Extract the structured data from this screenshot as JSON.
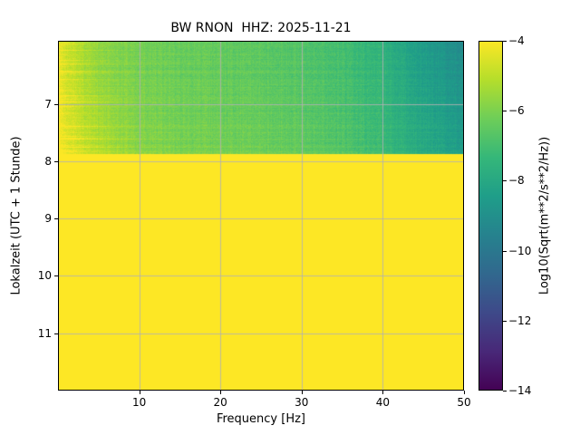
{
  "chart_data": {
    "type": "heatmap",
    "title": "BW RNON  HHZ: 2025-11-21",
    "xlabel": "Frequency [Hz]",
    "ylabel": "Lokalzeit (UTC + 1 Stunde)",
    "colorbar_label": "Log10(Sqrt(m**2/s**2/Hz))",
    "x_range": [
      0,
      50
    ],
    "y_range": [
      5.9,
      12.0
    ],
    "x_ticks": [
      10,
      20,
      30,
      40,
      50
    ],
    "y_ticks": [
      7,
      8,
      9,
      10,
      11
    ],
    "colorbar_range": [
      -14,
      -4
    ],
    "colorbar_ticks": [
      -4,
      -6,
      -8,
      -10,
      -12,
      -14
    ],
    "colormap": "viridis",
    "colormap_stops": [
      [
        0.0,
        "#440154"
      ],
      [
        0.111,
        "#482878"
      ],
      [
        0.222,
        "#3e4989"
      ],
      [
        0.333,
        "#31688e"
      ],
      [
        0.444,
        "#26828e"
      ],
      [
        0.556,
        "#1f9e89"
      ],
      [
        0.667,
        "#35b779"
      ],
      [
        0.778,
        "#6ece58"
      ],
      [
        0.889,
        "#b5de2b"
      ],
      [
        1.0,
        "#fde725"
      ]
    ],
    "grid": true,
    "grid_color": "#b2b2b2",
    "clip_time": 7.87,
    "clip_value": -4,
    "value_grid": {
      "times": [
        5.9,
        6.4,
        6.9,
        7.4,
        7.87
      ],
      "freqs": [
        0,
        5,
        10,
        15,
        20,
        25,
        30,
        35,
        40,
        45,
        50
      ],
      "values": [
        [
          -4.8,
          -5.8,
          -6.2,
          -6.4,
          -6.5,
          -6.6,
          -6.8,
          -7.1,
          -7.7,
          -8.6,
          -9.3
        ],
        [
          -4.7,
          -5.7,
          -6.1,
          -6.3,
          -6.4,
          -6.5,
          -6.7,
          -7.0,
          -7.5,
          -8.4,
          -9.0
        ],
        [
          -4.6,
          -5.5,
          -6.0,
          -6.2,
          -6.3,
          -6.4,
          -6.6,
          -6.9,
          -7.4,
          -8.2,
          -8.8
        ],
        [
          -4.5,
          -5.3,
          -5.9,
          -6.1,
          -6.2,
          -6.3,
          -6.5,
          -6.8,
          -7.3,
          -8.0,
          -8.6
        ],
        [
          -4.4,
          -5.2,
          -5.8,
          -6.0,
          -6.1,
          -6.2,
          -6.4,
          -6.7,
          -7.2,
          -7.9,
          -8.5
        ]
      ]
    }
  }
}
